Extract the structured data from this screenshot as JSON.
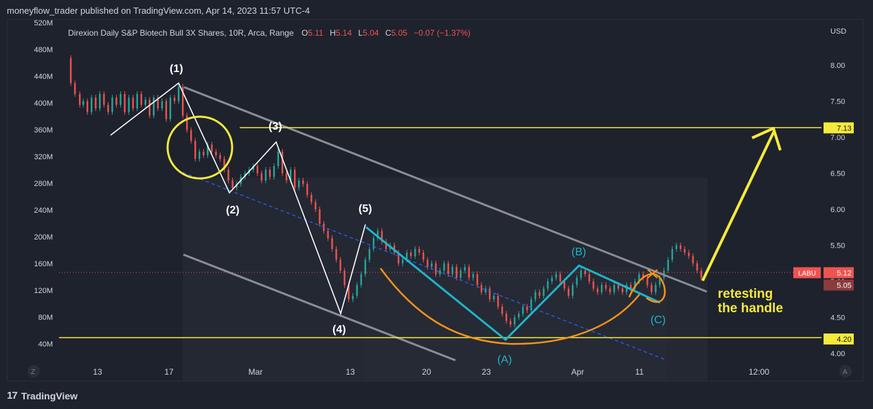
{
  "header": {
    "publish_line": "moneyflow_trader published on TradingView.com, Apr 14, 2023 11:57 UTC-4"
  },
  "legend": {
    "symbol_line": "Direxion Daily S&P Biotech Bull 3X Shares, 10R, Arca, Range",
    "o_label": "O",
    "o_value": "5.11",
    "h_label": "H",
    "h_value": "5.14",
    "l_label": "L",
    "l_value": "5.04",
    "c_label": "C",
    "c_value": "5.05",
    "change": "−0.07 (−1.37%)"
  },
  "footer": {
    "brand": "TradingView",
    "logo_text": "17"
  },
  "colors": {
    "background": "#1e222d",
    "up": "#26a69a",
    "down": "#ef5350",
    "annotation_white": "#ffffff",
    "annotation_yellow": "#f5ea3b",
    "annotation_cyan": "#1fb5c9",
    "annotation_orange": "#f7931a",
    "channel": "#8a8d96",
    "dashed": "#2962ff"
  },
  "chart_data": {
    "type": "candlestick",
    "title": "Direxion Daily S&P Biotech Bull 3X Shares, 10R, Arca, Range",
    "currency_label": "USD",
    "price_axis": {
      "ticks": [
        "8.00",
        "7.50",
        "7.00",
        "6.50",
        "6.00",
        "5.50",
        "5.00",
        "4.50",
        "4.00"
      ],
      "range": [
        3.95,
        8.55
      ]
    },
    "volume_axis": {
      "ticks": [
        "520M",
        "480M",
        "440M",
        "400M",
        "360M",
        "320M",
        "280M",
        "240M",
        "200M",
        "160M",
        "120M",
        "80M",
        "40M"
      ]
    },
    "time_axis": {
      "labels": [
        "13",
        "17",
        "Mar",
        "13",
        "20",
        "23",
        "Apr",
        "11",
        "12:00"
      ],
      "left_badge": "Z",
      "right_badge": "A"
    },
    "price_markers": [
      {
        "label": "7.13",
        "price": 7.13
      },
      {
        "label": "5.12",
        "price": 5.12,
        "tag": "LABU"
      },
      {
        "label": "5.05",
        "price": 5.05
      },
      {
        "label": "4.20",
        "price": 4.2
      }
    ],
    "horizontal_levels": [
      7.13,
      4.2
    ],
    "wave_labels": [
      "(1)",
      "(2)",
      "(3)",
      "(4)",
      "(5)",
      "(A)",
      "(B)",
      "(C)"
    ],
    "annotation_text": [
      "retesting",
      "the handle"
    ],
    "price_path": [
      [
        0,
        8.1
      ],
      [
        12,
        7.75
      ],
      [
        18,
        7.6
      ],
      [
        25,
        7.45
      ],
      [
        30,
        7.5
      ],
      [
        36,
        7.35
      ],
      [
        42,
        7.55
      ],
      [
        48,
        7.4
      ],
      [
        54,
        7.6
      ],
      [
        60,
        7.45
      ],
      [
        66,
        7.35
      ],
      [
        72,
        7.55
      ],
      [
        78,
        7.45
      ],
      [
        84,
        7.6
      ],
      [
        90,
        7.35
      ],
      [
        96,
        7.55
      ],
      [
        102,
        7.4
      ],
      [
        108,
        7.6
      ],
      [
        114,
        7.45
      ],
      [
        120,
        7.52
      ],
      [
        126,
        7.3
      ],
      [
        132,
        7.55
      ],
      [
        138,
        7.4
      ],
      [
        144,
        7.5
      ],
      [
        150,
        7.25
      ],
      [
        156,
        7.55
      ],
      [
        162,
        7.5
      ],
      [
        168,
        7.7
      ],
      [
        174,
        7.3
      ],
      [
        180,
        7.1
      ],
      [
        186,
        6.95
      ],
      [
        192,
        6.7
      ],
      [
        198,
        6.8
      ],
      [
        204,
        6.75
      ],
      [
        210,
        6.9
      ],
      [
        216,
        6.8
      ],
      [
        222,
        6.75
      ],
      [
        228,
        6.7
      ],
      [
        234,
        6.55
      ],
      [
        240,
        6.4
      ],
      [
        246,
        6.3
      ],
      [
        252,
        6.35
      ],
      [
        258,
        6.45
      ],
      [
        264,
        6.5
      ],
      [
        270,
        6.55
      ],
      [
        276,
        6.6
      ],
      [
        282,
        6.5
      ],
      [
        288,
        6.4
      ],
      [
        294,
        6.55
      ],
      [
        300,
        6.45
      ],
      [
        306,
        6.6
      ],
      [
        312,
        6.8
      ],
      [
        318,
        6.5
      ],
      [
        324,
        6.4
      ],
      [
        330,
        6.55
      ],
      [
        336,
        6.3
      ],
      [
        342,
        6.4
      ],
      [
        348,
        6.35
      ],
      [
        354,
        6.2
      ],
      [
        360,
        6.1
      ],
      [
        366,
        6.0
      ],
      [
        372,
        5.8
      ],
      [
        378,
        5.7
      ],
      [
        384,
        5.6
      ],
      [
        390,
        5.45
      ],
      [
        396,
        5.3
      ],
      [
        402,
        5.15
      ],
      [
        408,
        4.95
      ],
      [
        414,
        4.75
      ],
      [
        420,
        4.8
      ],
      [
        426,
        4.95
      ],
      [
        432,
        5.1
      ],
      [
        438,
        5.3
      ],
      [
        444,
        5.45
      ],
      [
        450,
        5.6
      ],
      [
        456,
        5.7
      ],
      [
        462,
        5.55
      ],
      [
        468,
        5.45
      ],
      [
        474,
        5.5
      ],
      [
        480,
        5.4
      ],
      [
        486,
        5.25
      ],
      [
        492,
        5.3
      ],
      [
        498,
        5.4
      ],
      [
        504,
        5.35
      ],
      [
        510,
        5.45
      ],
      [
        516,
        5.4
      ],
      [
        522,
        5.3
      ],
      [
        528,
        5.2
      ],
      [
        534,
        5.25
      ],
      [
        540,
        5.1
      ],
      [
        546,
        5.15
      ],
      [
        552,
        5.25
      ],
      [
        558,
        5.1
      ],
      [
        564,
        5.2
      ],
      [
        570,
        5.05
      ],
      [
        576,
        5.15
      ],
      [
        582,
        5.2
      ],
      [
        588,
        5.05
      ],
      [
        594,
        5.1
      ],
      [
        600,
        4.95
      ],
      [
        606,
        4.85
      ],
      [
        612,
        4.9
      ],
      [
        618,
        4.75
      ],
      [
        624,
        4.8
      ],
      [
        630,
        4.65
      ],
      [
        636,
        4.55
      ],
      [
        642,
        4.45
      ],
      [
        648,
        4.4
      ],
      [
        654,
        4.5
      ],
      [
        660,
        4.55
      ],
      [
        666,
        4.65
      ],
      [
        672,
        4.6
      ],
      [
        678,
        4.75
      ],
      [
        684,
        4.85
      ],
      [
        690,
        4.8
      ],
      [
        696,
        4.9
      ],
      [
        702,
        5.0
      ],
      [
        708,
        5.05
      ],
      [
        714,
        5.1
      ],
      [
        720,
        5.0
      ],
      [
        726,
        4.9
      ],
      [
        732,
        4.8
      ],
      [
        738,
        4.95
      ],
      [
        744,
        5.05
      ],
      [
        750,
        5.15
      ],
      [
        756,
        5.1
      ],
      [
        762,
        5.0
      ],
      [
        768,
        4.9
      ],
      [
        774,
        4.85
      ],
      [
        780,
        4.95
      ],
      [
        786,
        4.9
      ],
      [
        792,
        4.85
      ],
      [
        798,
        4.95
      ],
      [
        804,
        4.9
      ],
      [
        810,
        4.85
      ],
      [
        816,
        4.95
      ],
      [
        822,
        4.9
      ],
      [
        828,
        5.0
      ],
      [
        834,
        5.1
      ],
      [
        840,
        5.05
      ],
      [
        846,
        4.95
      ],
      [
        852,
        4.85
      ],
      [
        858,
        4.95
      ],
      [
        864,
        5.05
      ],
      [
        870,
        5.15
      ],
      [
        876,
        5.3
      ],
      [
        882,
        5.45
      ],
      [
        888,
        5.5
      ],
      [
        894,
        5.45
      ],
      [
        900,
        5.4
      ],
      [
        906,
        5.35
      ],
      [
        912,
        5.25
      ],
      [
        918,
        5.15
      ],
      [
        924,
        5.05
      ]
    ]
  }
}
